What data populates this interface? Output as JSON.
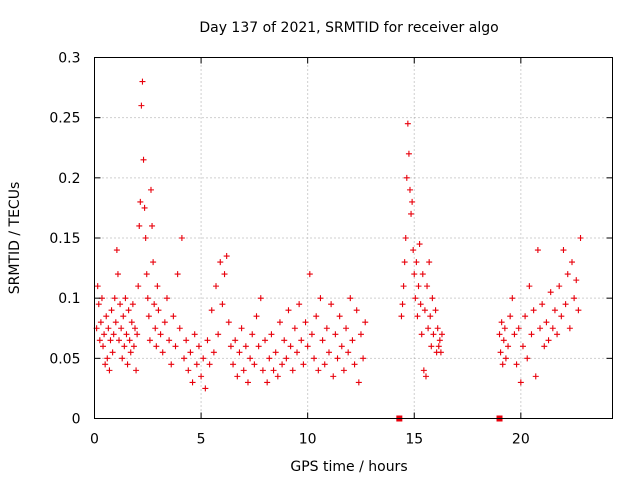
{
  "chart_data": {
    "type": "scatter",
    "title": "Day 137 of 2021, SRMTID for receiver algo",
    "xlabel": "GPS time / hours",
    "ylabel": "SRMTID / TECUs",
    "xlim": [
      0,
      24.3
    ],
    "ylim": [
      0,
      0.3
    ],
    "xticks": [
      0,
      5,
      10,
      15,
      20
    ],
    "yticks": [
      0,
      0.05,
      0.1,
      0.15,
      0.2,
      0.25,
      0.3
    ],
    "ytick_labels": [
      "0",
      "0.05",
      "0.1",
      "0.15",
      "0.2",
      "0.25",
      "0.3"
    ],
    "grid": true,
    "marker": "plus",
    "color": "#e8000b",
    "series": [
      {
        "name": "SRMTID",
        "points": [
          [
            0.1,
            0.075
          ],
          [
            0.15,
            0.11
          ],
          [
            0.2,
            0.095
          ],
          [
            0.25,
            0.065
          ],
          [
            0.3,
            0.08
          ],
          [
            0.35,
            0.1
          ],
          [
            0.4,
            0.06
          ],
          [
            0.45,
            0.07
          ],
          [
            0.5,
            0.045
          ],
          [
            0.55,
            0.085
          ],
          [
            0.6,
            0.05
          ],
          [
            0.65,
            0.075
          ],
          [
            0.7,
            0.04
          ],
          [
            0.75,
            0.065
          ],
          [
            0.8,
            0.09
          ],
          [
            0.85,
            0.055
          ],
          [
            0.9,
            0.07
          ],
          [
            0.95,
            0.1
          ],
          [
            1.0,
            0.08
          ],
          [
            1.05,
            0.14
          ],
          [
            1.1,
            0.12
          ],
          [
            1.15,
            0.065
          ],
          [
            1.2,
            0.095
          ],
          [
            1.25,
            0.075
          ],
          [
            1.3,
            0.05
          ],
          [
            1.35,
            0.085
          ],
          [
            1.4,
            0.06
          ],
          [
            1.45,
            0.1
          ],
          [
            1.5,
            0.07
          ],
          [
            1.55,
            0.045
          ],
          [
            1.6,
            0.09
          ],
          [
            1.65,
            0.065
          ],
          [
            1.7,
            0.055
          ],
          [
            1.75,
            0.08
          ],
          [
            1.8,
            0.095
          ],
          [
            1.85,
            0.06
          ],
          [
            1.9,
            0.075
          ],
          [
            1.95,
            0.04
          ],
          [
            2.0,
            0.07
          ],
          [
            2.05,
            0.11
          ],
          [
            2.1,
            0.16
          ],
          [
            2.15,
            0.18
          ],
          [
            2.2,
            0.26
          ],
          [
            2.25,
            0.28
          ],
          [
            2.3,
            0.215
          ],
          [
            2.35,
            0.175
          ],
          [
            2.4,
            0.15
          ],
          [
            2.45,
            0.12
          ],
          [
            2.5,
            0.1
          ],
          [
            2.55,
            0.085
          ],
          [
            2.6,
            0.065
          ],
          [
            2.65,
            0.19
          ],
          [
            2.7,
            0.16
          ],
          [
            2.75,
            0.13
          ],
          [
            2.8,
            0.095
          ],
          [
            2.85,
            0.075
          ],
          [
            2.9,
            0.06
          ],
          [
            2.95,
            0.11
          ],
          [
            3.0,
            0.09
          ],
          [
            3.1,
            0.07
          ],
          [
            3.2,
            0.055
          ],
          [
            3.3,
            0.08
          ],
          [
            3.4,
            0.1
          ],
          [
            3.5,
            0.065
          ],
          [
            3.6,
            0.045
          ],
          [
            3.7,
            0.085
          ],
          [
            3.8,
            0.06
          ],
          [
            3.9,
            0.12
          ],
          [
            4.0,
            0.075
          ],
          [
            4.1,
            0.15
          ],
          [
            4.2,
            0.05
          ],
          [
            4.3,
            0.065
          ],
          [
            4.4,
            0.04
          ],
          [
            4.5,
            0.055
          ],
          [
            4.6,
            0.03
          ],
          [
            4.7,
            0.07
          ],
          [
            4.8,
            0.045
          ],
          [
            4.9,
            0.06
          ],
          [
            5.0,
            0.035
          ],
          [
            5.1,
            0.05
          ],
          [
            5.2,
            0.025
          ],
          [
            5.3,
            0.065
          ],
          [
            5.4,
            0.045
          ],
          [
            5.5,
            0.09
          ],
          [
            5.6,
            0.055
          ],
          [
            5.7,
            0.11
          ],
          [
            5.8,
            0.07
          ],
          [
            5.9,
            0.13
          ],
          [
            6.0,
            0.095
          ],
          [
            6.1,
            0.12
          ],
          [
            6.2,
            0.135
          ],
          [
            6.3,
            0.08
          ],
          [
            6.4,
            0.06
          ],
          [
            6.5,
            0.045
          ],
          [
            6.6,
            0.065
          ],
          [
            6.7,
            0.035
          ],
          [
            6.8,
            0.055
          ],
          [
            6.9,
            0.075
          ],
          [
            7.0,
            0.04
          ],
          [
            7.1,
            0.06
          ],
          [
            7.2,
            0.03
          ],
          [
            7.3,
            0.05
          ],
          [
            7.4,
            0.07
          ],
          [
            7.5,
            0.045
          ],
          [
            7.6,
            0.085
          ],
          [
            7.7,
            0.06
          ],
          [
            7.8,
            0.1
          ],
          [
            7.9,
            0.04
          ],
          [
            8.0,
            0.065
          ],
          [
            8.1,
            0.03
          ],
          [
            8.2,
            0.05
          ],
          [
            8.3,
            0.07
          ],
          [
            8.4,
            0.04
          ],
          [
            8.5,
            0.055
          ],
          [
            8.6,
            0.035
          ],
          [
            8.7,
            0.08
          ],
          [
            8.8,
            0.045
          ],
          [
            8.9,
            0.065
          ],
          [
            9.0,
            0.05
          ],
          [
            9.1,
            0.09
          ],
          [
            9.2,
            0.06
          ],
          [
            9.3,
            0.04
          ],
          [
            9.4,
            0.075
          ],
          [
            9.5,
            0.055
          ],
          [
            9.6,
            0.095
          ],
          [
            9.7,
            0.065
          ],
          [
            9.8,
            0.045
          ],
          [
            9.9,
            0.08
          ],
          [
            10.0,
            0.06
          ],
          [
            10.1,
            0.12
          ],
          [
            10.2,
            0.07
          ],
          [
            10.3,
            0.05
          ],
          [
            10.4,
            0.085
          ],
          [
            10.5,
            0.04
          ],
          [
            10.6,
            0.1
          ],
          [
            10.7,
            0.065
          ],
          [
            10.8,
            0.045
          ],
          [
            10.9,
            0.075
          ],
          [
            11.0,
            0.055
          ],
          [
            11.1,
            0.095
          ],
          [
            11.2,
            0.035
          ],
          [
            11.3,
            0.07
          ],
          [
            11.4,
            0.05
          ],
          [
            11.5,
            0.085
          ],
          [
            11.6,
            0.06
          ],
          [
            11.7,
            0.04
          ],
          [
            11.8,
            0.075
          ],
          [
            11.9,
            0.055
          ],
          [
            12.0,
            0.1
          ],
          [
            12.1,
            0.065
          ],
          [
            12.2,
            0.045
          ],
          [
            12.3,
            0.09
          ],
          [
            12.4,
            0.03
          ],
          [
            12.5,
            0.07
          ],
          [
            12.6,
            0.05
          ],
          [
            12.7,
            0.08
          ],
          [
            14.4,
            0.085
          ],
          [
            14.45,
            0.095
          ],
          [
            14.5,
            0.11
          ],
          [
            14.55,
            0.13
          ],
          [
            14.6,
            0.15
          ],
          [
            14.65,
            0.2
          ],
          [
            14.7,
            0.245
          ],
          [
            14.75,
            0.22
          ],
          [
            14.8,
            0.19
          ],
          [
            14.85,
            0.17
          ],
          [
            14.9,
            0.18
          ],
          [
            14.95,
            0.14
          ],
          [
            15.0,
            0.12
          ],
          [
            15.05,
            0.1
          ],
          [
            15.1,
            0.13
          ],
          [
            15.15,
            0.085
          ],
          [
            15.2,
            0.11
          ],
          [
            15.25,
            0.145
          ],
          [
            15.3,
            0.095
          ],
          [
            15.35,
            0.07
          ],
          [
            15.4,
            0.12
          ],
          [
            15.45,
            0.04
          ],
          [
            15.5,
            0.09
          ],
          [
            15.55,
            0.035
          ],
          [
            15.6,
            0.11
          ],
          [
            15.65,
            0.075
          ],
          [
            15.7,
            0.13
          ],
          [
            15.75,
            0.085
          ],
          [
            15.8,
            0.06
          ],
          [
            15.85,
            0.1
          ],
          [
            15.9,
            0.07
          ],
          [
            16.0,
            0.09
          ],
          [
            16.05,
            0.055
          ],
          [
            16.1,
            0.075
          ],
          [
            16.15,
            0.06
          ],
          [
            16.2,
            0.065
          ],
          [
            16.25,
            0.055
          ],
          [
            16.3,
            0.07
          ],
          [
            19.0,
            0.07
          ],
          [
            19.05,
            0.055
          ],
          [
            19.1,
            0.08
          ],
          [
            19.15,
            0.045
          ],
          [
            19.2,
            0.065
          ],
          [
            19.25,
            0.075
          ],
          [
            19.3,
            0.05
          ],
          [
            19.4,
            0.06
          ],
          [
            19.5,
            0.085
          ],
          [
            19.6,
            0.1
          ],
          [
            19.7,
            0.07
          ],
          [
            19.8,
            0.045
          ],
          [
            19.9,
            0.075
          ],
          [
            20.0,
            0.03
          ],
          [
            20.1,
            0.06
          ],
          [
            20.2,
            0.085
          ],
          [
            20.3,
            0.05
          ],
          [
            20.4,
            0.11
          ],
          [
            20.5,
            0.07
          ],
          [
            20.6,
            0.09
          ],
          [
            20.7,
            0.035
          ],
          [
            20.8,
            0.14
          ],
          [
            20.9,
            0.075
          ],
          [
            21.0,
            0.095
          ],
          [
            21.1,
            0.06
          ],
          [
            21.2,
            0.08
          ],
          [
            21.3,
            0.065
          ],
          [
            21.4,
            0.105
          ],
          [
            21.5,
            0.075
          ],
          [
            21.6,
            0.09
          ],
          [
            21.7,
            0.07
          ],
          [
            21.8,
            0.11
          ],
          [
            21.9,
            0.085
          ],
          [
            22.0,
            0.14
          ],
          [
            22.1,
            0.095
          ],
          [
            22.2,
            0.12
          ],
          [
            22.3,
            0.075
          ],
          [
            22.4,
            0.13
          ],
          [
            22.5,
            0.1
          ],
          [
            22.6,
            0.115
          ],
          [
            22.7,
            0.09
          ],
          [
            22.8,
            0.15
          ]
        ]
      },
      {
        "name": "zero markers",
        "marker": "square",
        "points": [
          [
            14.3,
            0
          ],
          [
            19.0,
            0
          ]
        ]
      }
    ]
  }
}
